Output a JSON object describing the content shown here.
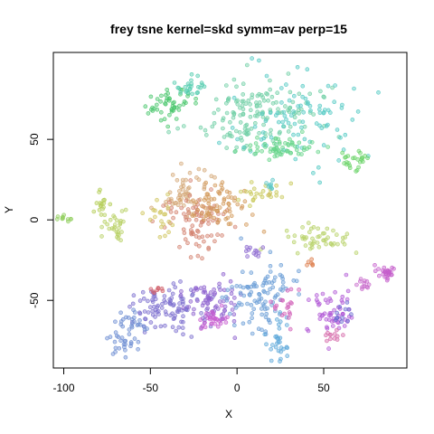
{
  "chart_data": {
    "type": "scatter",
    "title": "frey tsne kernel=skd symm=av perp=15",
    "xlabel": "X",
    "ylabel": "Y",
    "xlim": [
      -106,
      98
    ],
    "ylim": [
      -92,
      104
    ],
    "xticks": [
      -100,
      -50,
      0,
      50
    ],
    "yticks": [
      -50,
      0,
      50
    ],
    "grid": false,
    "legend": "none",
    "clusters": [
      {
        "color": "#4cc76e",
        "cx": -38,
        "cy": 72,
        "sx": 7,
        "sy": 5,
        "n": 50
      },
      {
        "color": "#55cdb0",
        "cx": -27,
        "cy": 84,
        "sx": 5,
        "sy": 3,
        "n": 25
      },
      {
        "color": "#6fcfa5",
        "cx": 12,
        "cy": 65,
        "sx": 17,
        "sy": 10,
        "n": 150
      },
      {
        "color": "#53c9c4",
        "cx": 35,
        "cy": 62,
        "sx": 18,
        "sy": 14,
        "n": 90
      },
      {
        "color": "#66d58a",
        "cx": 28,
        "cy": 45,
        "sx": 10,
        "sy": 4,
        "n": 60
      },
      {
        "color": "#6dd46a",
        "cx": 68,
        "cy": 37,
        "sx": 5,
        "sy": 4,
        "n": 25
      },
      {
        "color": "#92cf60",
        "cx": -99,
        "cy": 1,
        "sx": 3,
        "sy": 1.5,
        "n": 12
      },
      {
        "color": "#b3cd55",
        "cx": -79,
        "cy": 10,
        "sx": 3,
        "sy": 3,
        "n": 15
      },
      {
        "color": "#b9d166",
        "cx": -71,
        "cy": -5,
        "sx": 4,
        "sy": 6,
        "n": 30
      },
      {
        "color": "#d4a878",
        "cx": -27,
        "cy": 16,
        "sx": 9,
        "sy": 8,
        "n": 60
      },
      {
        "color": "#d3816e",
        "cx": -22,
        "cy": -3,
        "sx": 9,
        "sy": 10,
        "n": 80
      },
      {
        "color": "#d39a5a",
        "cx": -10,
        "cy": 8,
        "sx": 10,
        "sy": 8,
        "n": 70
      },
      {
        "color": "#d0c660",
        "cx": -44,
        "cy": 2,
        "sx": 4,
        "sy": 8,
        "n": 20
      },
      {
        "color": "#c9c95c",
        "cx": 12,
        "cy": 17,
        "sx": 8,
        "sy": 3,
        "n": 25
      },
      {
        "color": "#5ec8c8",
        "cx": 18,
        "cy": 20,
        "sx": 2,
        "sy": 2,
        "n": 8
      },
      {
        "color": "#b9d26a",
        "cx": 46,
        "cy": -11,
        "sx": 10,
        "sy": 4,
        "n": 50
      },
      {
        "color": "#dd7f4e",
        "cx": 43,
        "cy": -28,
        "sx": 2,
        "sy": 2,
        "n": 6
      },
      {
        "color": "#7c6fcf",
        "cx": -40,
        "cy": -55,
        "sx": 12,
        "sy": 7,
        "n": 100
      },
      {
        "color": "#6f8fd3",
        "cx": -60,
        "cy": -66,
        "sx": 5,
        "sy": 5,
        "n": 25
      },
      {
        "color": "#6f8fd3",
        "cx": -67,
        "cy": -77,
        "sx": 4,
        "sy": 4,
        "n": 25
      },
      {
        "color": "#8d62cf",
        "cx": -15,
        "cy": -50,
        "sx": 8,
        "sy": 7,
        "n": 70
      },
      {
        "color": "#c85dd0",
        "cx": -15,
        "cy": -63,
        "sx": 5,
        "sy": 3,
        "n": 30
      },
      {
        "color": "#6b9ed6",
        "cx": 15,
        "cy": -45,
        "sx": 10,
        "sy": 10,
        "n": 100
      },
      {
        "color": "#5ea8da",
        "cx": 24,
        "cy": -75,
        "sx": 3,
        "sy": 8,
        "n": 30
      },
      {
        "color": "#8d6bd0",
        "cx": 12,
        "cy": -20,
        "sx": 3,
        "sy": 2,
        "n": 12
      },
      {
        "color": "#d15fb7",
        "cx": 28,
        "cy": -55,
        "sx": 4,
        "sy": 6,
        "n": 20
      },
      {
        "color": "#b25ad6",
        "cx": 55,
        "cy": -58,
        "sx": 6,
        "sy": 7,
        "n": 55
      },
      {
        "color": "#d569a9",
        "cx": 55,
        "cy": -72,
        "sx": 3,
        "sy": 2,
        "n": 12
      },
      {
        "color": "#6b6ad1",
        "cx": 60,
        "cy": -58,
        "sx": 3,
        "sy": 4,
        "n": 12
      },
      {
        "color": "#c55fcb",
        "cx": 85,
        "cy": -32,
        "sx": 3,
        "sy": 3,
        "n": 30
      },
      {
        "color": "#c86acb",
        "cx": 73,
        "cy": -40,
        "sx": 3,
        "sy": 2,
        "n": 12
      },
      {
        "color": "#d0606a",
        "cx": -48,
        "cy": -43,
        "sx": 3,
        "sy": 2,
        "n": 8
      }
    ]
  }
}
